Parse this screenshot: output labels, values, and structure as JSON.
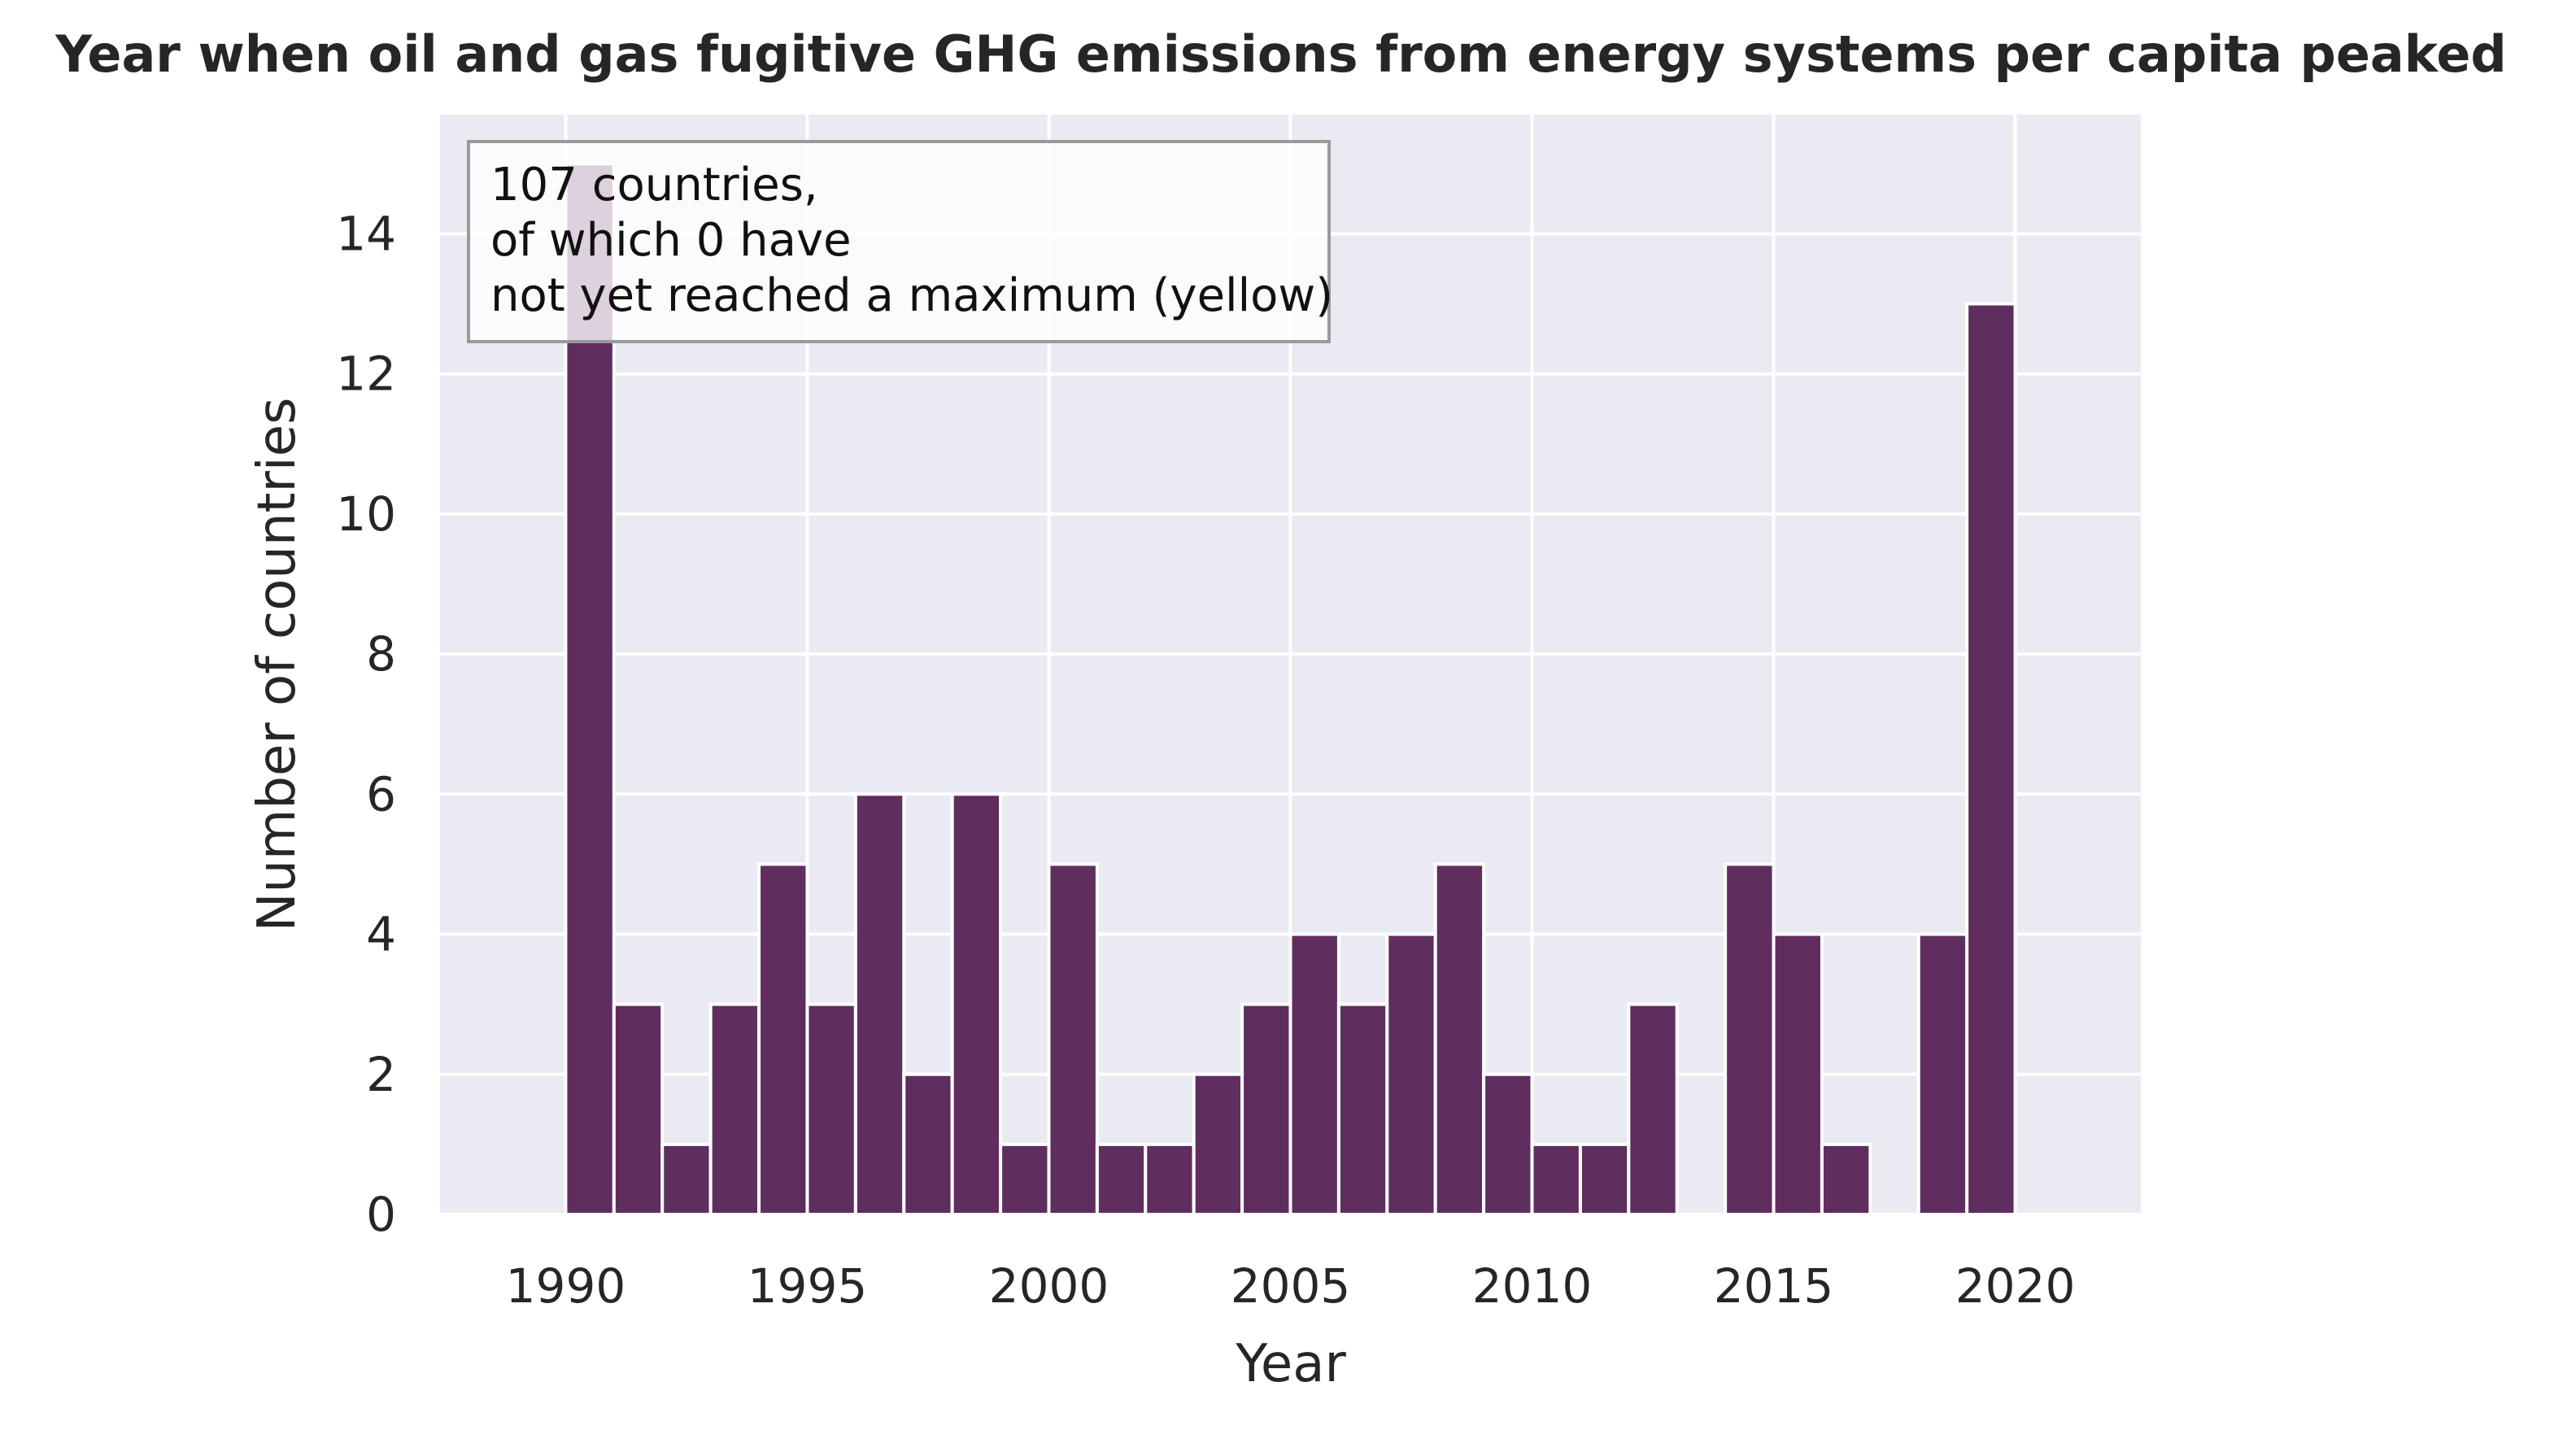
{
  "chart_data": {
    "type": "bar",
    "title": "Year when oil and gas fugitive GHG emissions from energy systems per capita peaked",
    "xlabel": "Year",
    "ylabel": "Number of countries",
    "x": [
      1990,
      1991,
      1992,
      1993,
      1994,
      1995,
      1996,
      1997,
      1998,
      1999,
      2000,
      2001,
      2002,
      2003,
      2004,
      2005,
      2006,
      2007,
      2008,
      2009,
      2010,
      2011,
      2012,
      2013,
      2014,
      2015,
      2016,
      2017,
      2018,
      2019
    ],
    "values": [
      15,
      3,
      1,
      3,
      5,
      3,
      6,
      2,
      6,
      1,
      5,
      1,
      1,
      2,
      3,
      4,
      3,
      4,
      5,
      2,
      1,
      1,
      3,
      0,
      5,
      4,
      1,
      0,
      4,
      13
    ],
    "xlim": [
      1987.4,
      2022.6
    ],
    "ylim": [
      0,
      15.7
    ],
    "xticks": [
      1990,
      1995,
      2000,
      2005,
      2010,
      2015,
      2020
    ],
    "yticks": [
      0,
      2,
      4,
      6,
      8,
      10,
      12,
      14
    ],
    "grid": true,
    "bar_color": "#602d5f",
    "background_color": "#eaeaf2",
    "grid_color": "#ffffff",
    "annotation": {
      "lines": [
        "107 countries,",
        "of which 0 have",
        "not yet reached a maximum (yellow)"
      ],
      "placement": "top-left"
    }
  }
}
